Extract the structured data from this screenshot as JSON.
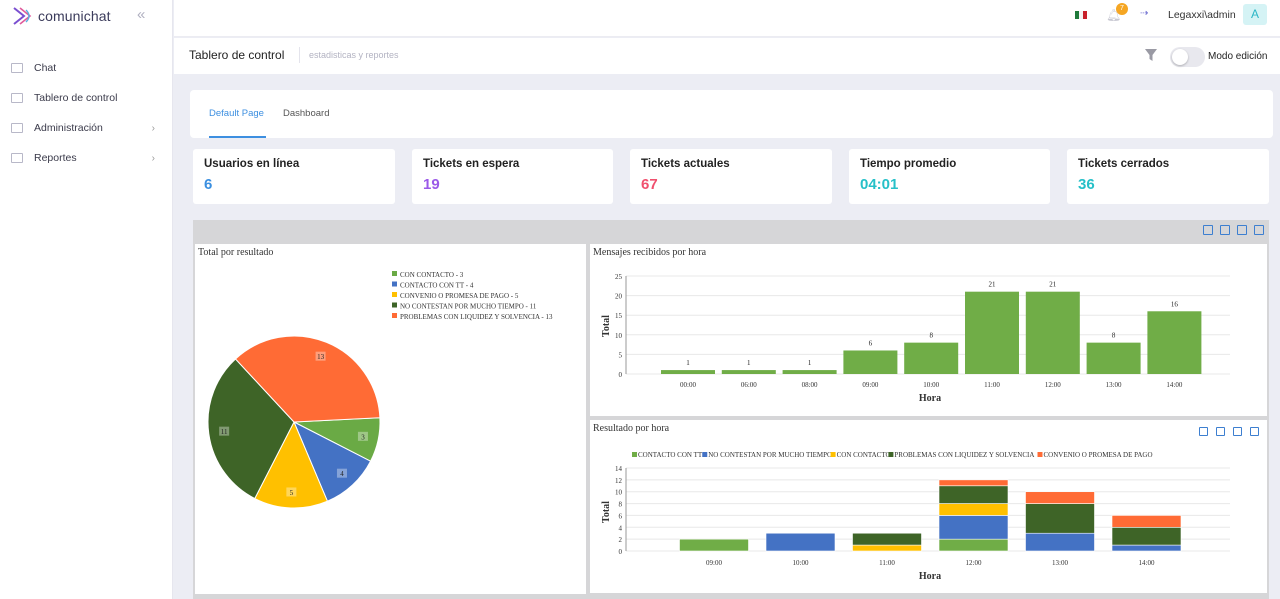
{
  "app": {
    "name": "comunichat"
  },
  "sidebar": {
    "items": [
      {
        "label": "Chat",
        "has_submenu": false
      },
      {
        "label": "Tablero de control",
        "has_submenu": false
      },
      {
        "label": "Administración",
        "has_submenu": true
      },
      {
        "label": "Reportes",
        "has_submenu": true
      }
    ]
  },
  "topbar": {
    "notification_count": "7",
    "user": "Legaxxi\\admin",
    "avatar_letter": "A"
  },
  "page": {
    "title": "Tablero de control",
    "subtitle": "estadisticas y reportes",
    "mode_label": "Modo edición"
  },
  "tabs": [
    "Default Page",
    "Dashboard"
  ],
  "stats": [
    {
      "label": "Usuarios en línea",
      "value": "6",
      "color": "#3a8fe0"
    },
    {
      "label": "Tickets en espera",
      "value": "19",
      "color": "#9b59e8"
    },
    {
      "label": "Tickets actuales",
      "value": "67",
      "color": "#f0506e"
    },
    {
      "label": "Tiempo promedio",
      "value": "04:01",
      "color": "#26c0c8"
    },
    {
      "label": "Tickets cerrados",
      "value": "36",
      "color": "#26c0c8"
    }
  ],
  "chart_data": [
    {
      "type": "pie",
      "title": "Total por resultado",
      "categories": [
        "CON CONTACTO",
        "CONTACTO CON TT",
        "CONVENIO O PROMESA DE PAGO",
        "NO CONTESTAN POR MUCHO TIEMPO",
        "PROBLEMAS CON LIQUIDEZ Y SOLVENCIA"
      ],
      "legend_labels": [
        "CON CONTACTO - 3",
        "CONTACTO CON TT - 4",
        "CONVENIO O PROMESA DE PAGO - 5",
        "NO CONTESTAN POR MUCHO TIEMPO - 11",
        "PROBLEMAS CON LIQUIDEZ Y SOLVENCIA - 13"
      ],
      "values": [
        3,
        4,
        5,
        11,
        13
      ],
      "colors": [
        "#6aaa45",
        "#4472c4",
        "#ffc000",
        "#3e6427",
        "#ff6b35"
      ]
    },
    {
      "type": "bar",
      "title": "Mensajes recibidos por hora",
      "categories": [
        "00:00",
        "06:00",
        "08:00",
        "09:00",
        "10:00",
        "11:00",
        "12:00",
        "13:00",
        "14:00"
      ],
      "values": [
        1,
        1,
        1,
        6,
        8,
        21,
        21,
        8,
        16
      ],
      "xlabel": "Hora",
      "ylabel": "Total",
      "ylim": [
        0,
        25
      ],
      "yticks": [
        0,
        5,
        10,
        15,
        20,
        25
      ],
      "color": "#70ad47"
    },
    {
      "type": "bar",
      "stacked": true,
      "title": "Resultado por hora",
      "categories": [
        "09:00",
        "10:00",
        "11:00",
        "12:00",
        "13:00",
        "14:00"
      ],
      "xlabel": "Hora",
      "ylabel": "Total",
      "ylim": [
        0,
        14
      ],
      "yticks": [
        0,
        2,
        4,
        6,
        8,
        10,
        12,
        14
      ],
      "series": [
        {
          "name": "CONTACTO CON TT",
          "color": "#70ad47",
          "values": [
            2,
            0,
            0,
            2,
            0,
            0
          ]
        },
        {
          "name": "NO CONTESTAN POR MUCHO TIEMPO",
          "color": "#4472c4",
          "values": [
            0,
            3,
            0,
            4,
            3,
            1
          ]
        },
        {
          "name": "CON CONTACTO",
          "color": "#ffc000",
          "values": [
            0,
            0,
            1,
            2,
            0,
            0
          ]
        },
        {
          "name": "PROBLEMAS CON LIQUIDEZ Y SOLVENCIA",
          "color": "#3e6427",
          "values": [
            0,
            0,
            2,
            3,
            5,
            3
          ]
        },
        {
          "name": "CONVENIO O PROMESA DE PAGO",
          "color": "#ff6b35",
          "values": [
            0,
            0,
            0,
            1,
            2,
            2
          ]
        }
      ]
    }
  ]
}
